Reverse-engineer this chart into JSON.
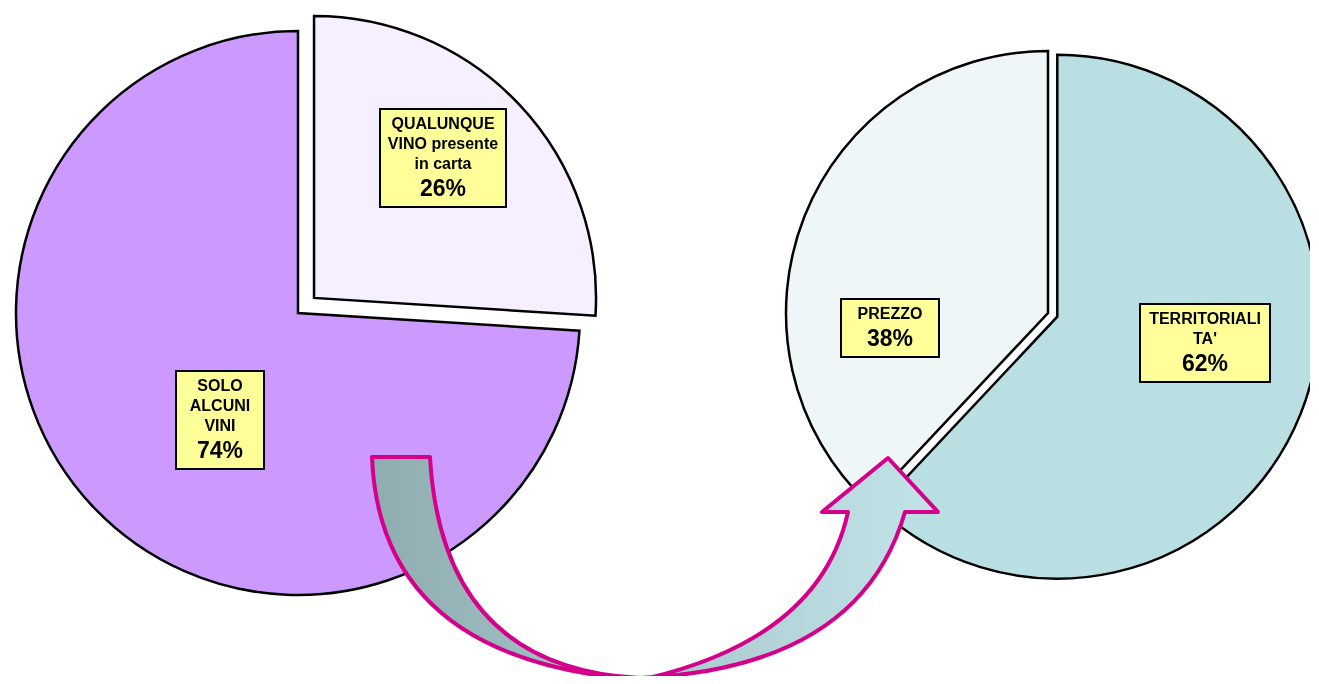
{
  "chart_data": [
    {
      "type": "pie",
      "categories": [
        "QUALUNQUE VINO presente in carta",
        "SOLO ALCUNI VINI"
      ],
      "values": [
        26,
        74
      ],
      "colors": [
        "#f5efff",
        "#cc99ff"
      ],
      "value_labels": [
        "26%",
        "74%"
      ]
    },
    {
      "type": "pie",
      "categories": [
        "TERRITORIALITA'",
        "PREZZO"
      ],
      "values": [
        62,
        38
      ],
      "colors": [
        "#b9dfe3",
        "#eef6f8"
      ],
      "value_labels": [
        "62%",
        "38%"
      ]
    }
  ]
}
